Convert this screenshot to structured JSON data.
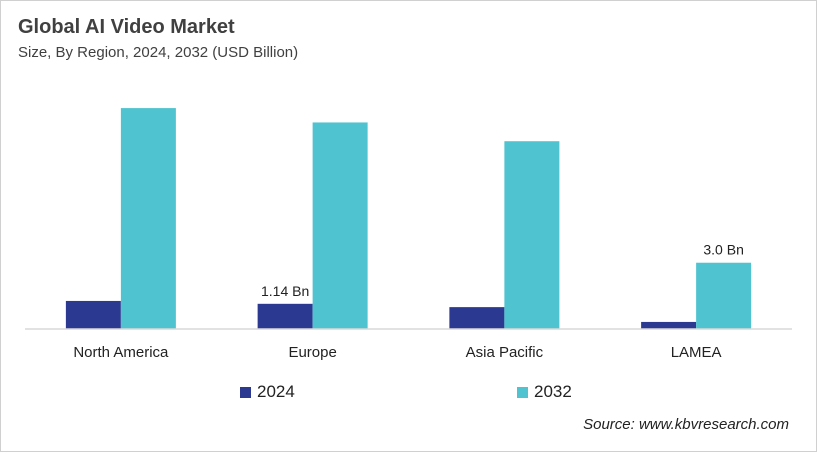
{
  "title": "Global AI Video Market",
  "subtitle": "Size, By Region, 2024, 2032 (USD Billion)",
  "source": "Source: www.kbvresearch.com",
  "chart_data": {
    "type": "bar",
    "categories": [
      "North America",
      "Europe",
      "Asia Pacific",
      "LAMEA"
    ],
    "series": [
      {
        "name": "2024",
        "color": "#2b3990",
        "values": [
          1.27,
          1.14,
          0.99,
          0.32
        ],
        "labels": [
          "",
          "1.14 Bn",
          "",
          ""
        ]
      },
      {
        "name": "2032",
        "color": "#4fc3cf",
        "values": [
          10.0,
          9.35,
          8.5,
          3.0
        ],
        "labels": [
          "",
          "",
          "",
          "3.0 Bn"
        ]
      }
    ],
    "ylim": [
      0,
      11
    ],
    "grid": false,
    "legend": "bottom"
  }
}
